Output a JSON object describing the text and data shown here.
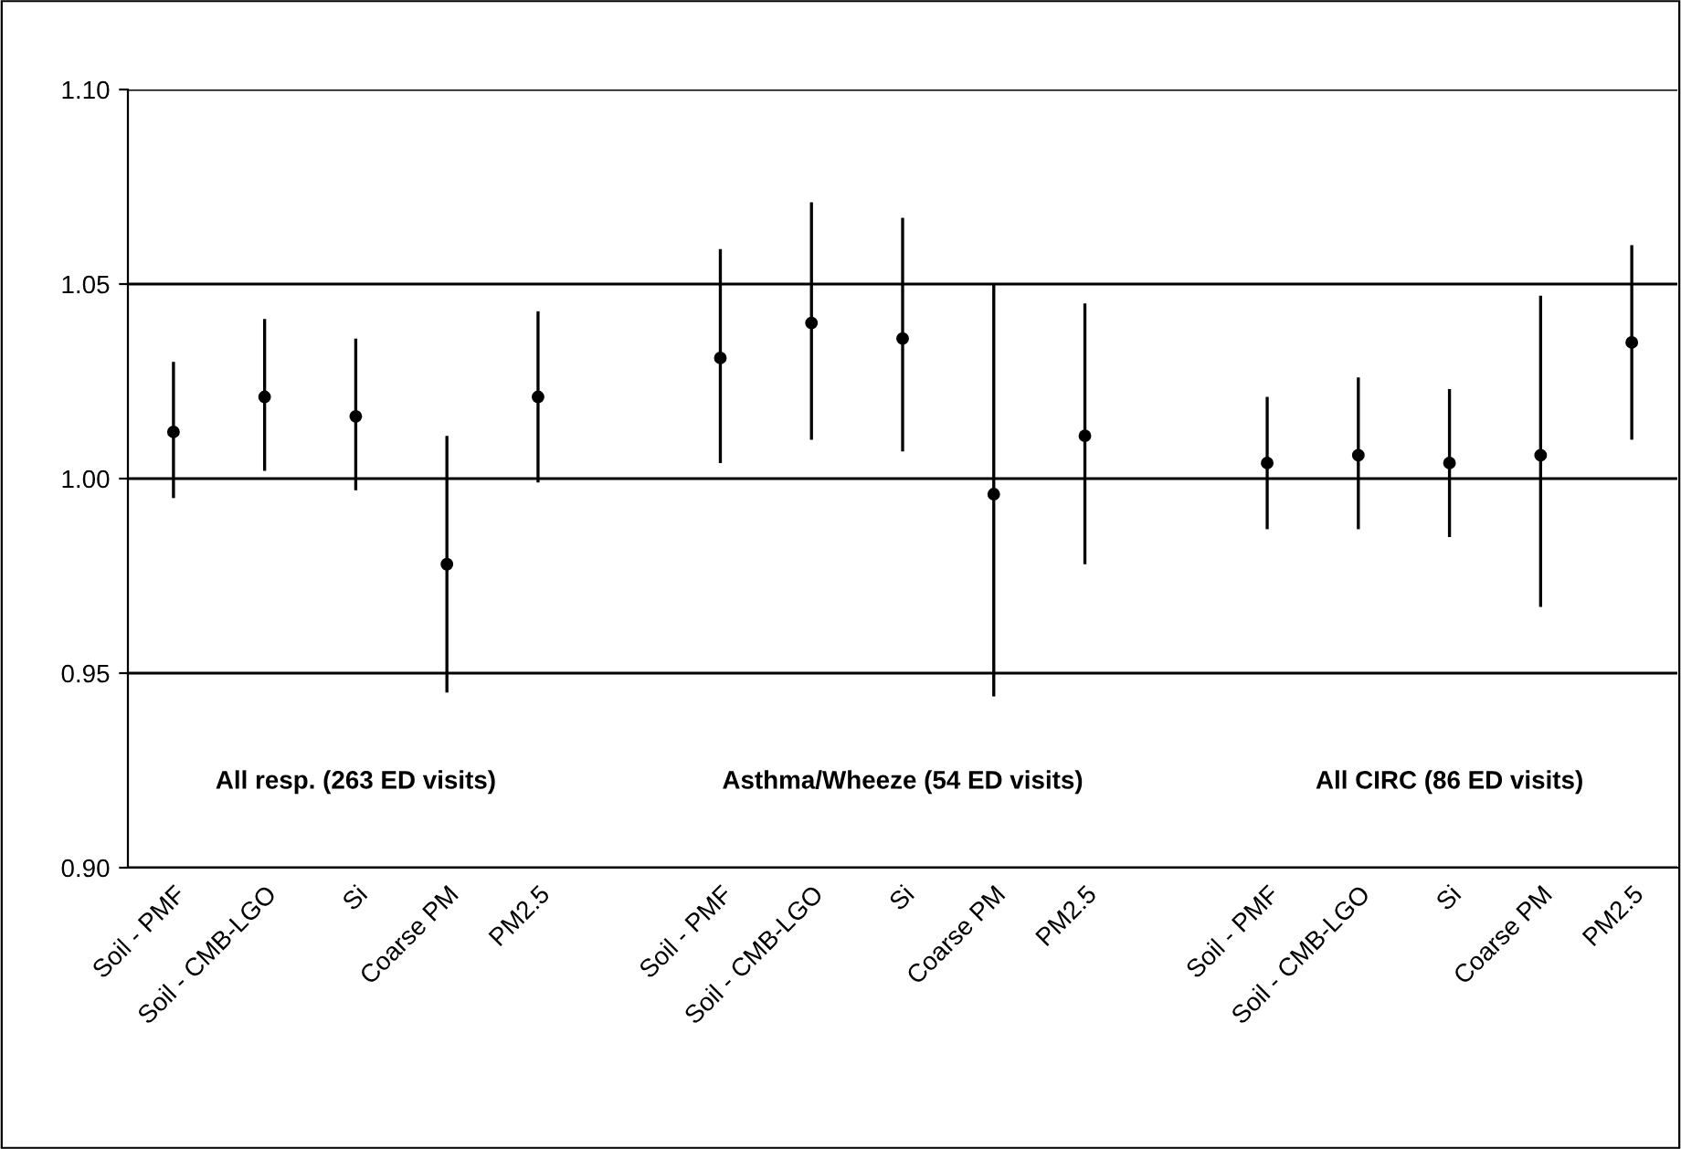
{
  "chart_data": {
    "type": "scatter",
    "categories": [
      "Soil - PMF",
      "Soil - CMB-LGO",
      "Si",
      "Coarse PM",
      "PM2.5",
      null,
      "Soil - PMF",
      "Soil - CMB-LGO",
      "Si",
      "Coarse PM",
      "PM2.5",
      null,
      "Soil - PMF",
      "Soil - CMB-LGO",
      "Si",
      "Coarse PM",
      "PM2.5"
    ],
    "values": [
      1.012,
      1.021,
      1.016,
      0.978,
      1.021,
      null,
      1.031,
      1.04,
      1.036,
      0.996,
      1.011,
      null,
      1.004,
      1.006,
      1.004,
      1.006,
      1.035
    ],
    "errors": [
      [
        0.995,
        1.03
      ],
      [
        1.002,
        1.041
      ],
      [
        0.997,
        1.036
      ],
      [
        0.945,
        1.011
      ],
      [
        0.999,
        1.043
      ],
      null,
      [
        1.004,
        1.059
      ],
      [
        1.01,
        1.071
      ],
      [
        1.007,
        1.067
      ],
      [
        0.944,
        1.05
      ],
      [
        0.978,
        1.045
      ],
      null,
      [
        0.987,
        1.021
      ],
      [
        0.987,
        1.026
      ],
      [
        0.985,
        1.023
      ],
      [
        0.967,
        1.047
      ],
      [
        1.01,
        1.06
      ]
    ],
    "color": "#000000",
    "marker": "circle",
    "ylim": [
      0.9,
      1.1
    ],
    "yticks": [
      {
        "value": 0.9,
        "label": "0.90"
      },
      {
        "value": 0.95,
        "label": "0.95"
      },
      {
        "value": 1.0,
        "label": "1.00"
      },
      {
        "value": 1.05,
        "label": "1.05"
      },
      {
        "value": 1.1,
        "label": "1.10"
      }
    ],
    "grid": "y",
    "legend": false,
    "annotations": [
      "All resp. (263 ED visits)",
      "Asthma/Wheeze (54 ED visits)",
      "All CIRC (86 ED visits)"
    ]
  }
}
